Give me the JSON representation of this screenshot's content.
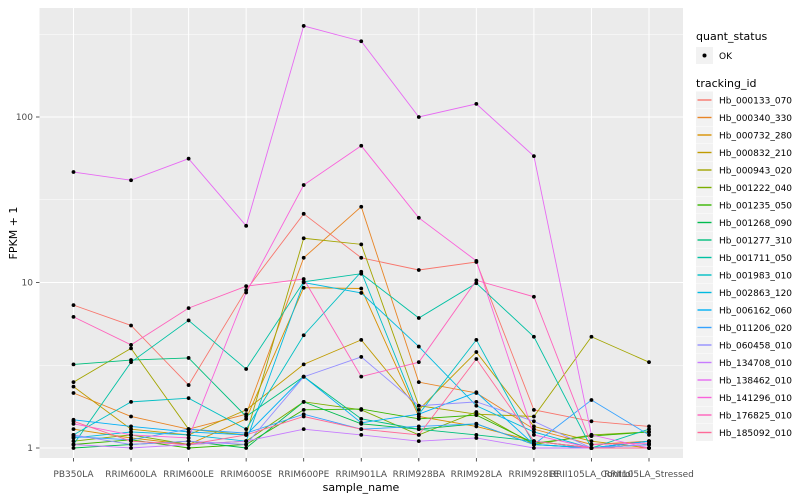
{
  "figure": {
    "kind": "ggplot-line-chart",
    "background": "#FFFFFF",
    "panel_background": "#EBEBEB",
    "grid_color": "#FFFFFF",
    "tick_color": "#333333",
    "tick_label_color": "#4D4D4D",
    "legend_key_fill": "#F2F2F2",
    "point_color": "#000000"
  },
  "legend": {
    "quant_status": {
      "title": "quant_status",
      "items": [
        {
          "label": "OK",
          "marker": "point"
        }
      ]
    },
    "tracking_id": {
      "title": "tracking_id"
    }
  },
  "chart_data": {
    "type": "line",
    "title": "",
    "xlabel": "sample_name",
    "ylabel": "FPKM + 1",
    "y_scale": "log10",
    "y_ticks": [
      1,
      10,
      100
    ],
    "y_minor_ticks": [
      3.1623,
      31.623,
      316.23
    ],
    "ylim_log": [
      0.87,
      456
    ],
    "grid": true,
    "legend_position": "right",
    "x_categories": [
      "PB350LA",
      "RRIM600LA",
      "RRIM600LE",
      "RRIM600SE",
      "RRIM600PE",
      "RRIM901LA",
      "RRIM928BA",
      "RRIM928LA",
      "RRIM928LE",
      "RRII105LA_Control",
      "RRII105LA_Stressed"
    ],
    "values_note": "FPKM+1, estimated from log axis",
    "series": [
      {
        "tracking_id": "Hb_000133_070",
        "color": "#F8766D",
        "quant_status": "OK",
        "values": [
          7.3,
          5.5,
          2.4,
          9.0,
          26.0,
          14.1,
          11.9,
          13.3,
          1.7,
          1.45,
          1.35
        ]
      },
      {
        "tracking_id": "Hb_000340_330",
        "color": "#E88526",
        "quant_status": "OK",
        "values": [
          2.15,
          1.55,
          1.3,
          1.6,
          14.1,
          28.7,
          2.5,
          2.15,
          1.3,
          1.05,
          1.1
        ]
      },
      {
        "tracking_id": "Hb_000732_280",
        "color": "#D89000",
        "quant_status": "OK",
        "values": [
          1.3,
          1.15,
          1.05,
          1.5,
          9.3,
          9.2,
          1.55,
          1.35,
          1.1,
          1.0,
          1.05
        ]
      },
      {
        "tracking_id": "Hb_000832_210",
        "color": "#C09B00",
        "quant_status": "OK",
        "values": [
          2.35,
          1.3,
          1.2,
          1.7,
          3.2,
          4.5,
          1.7,
          3.8,
          1.35,
          1.1,
          1.0
        ]
      },
      {
        "tracking_id": "Hb_000943_020",
        "color": "#A3A500",
        "quant_status": "OK",
        "values": [
          2.5,
          4.0,
          1.3,
          1.2,
          18.5,
          17.0,
          1.8,
          1.6,
          1.55,
          4.7,
          3.3
        ]
      },
      {
        "tracking_id": "Hb_001222_040",
        "color": "#7CAE00",
        "quant_status": "OK",
        "values": [
          1.1,
          1.2,
          1.05,
          1.1,
          1.9,
          1.7,
          1.2,
          1.65,
          1.05,
          1.2,
          1.25
        ]
      },
      {
        "tracking_id": "Hb_001235_050",
        "color": "#39B600",
        "quant_status": "OK",
        "values": [
          1.05,
          1.12,
          1.0,
          1.05,
          1.7,
          1.72,
          1.5,
          1.58,
          1.07,
          1.18,
          1.25
        ]
      },
      {
        "tracking_id": "Hb_001268_090",
        "color": "#00BB4E",
        "quant_status": "OK",
        "values": [
          1.0,
          1.05,
          1.1,
          1.0,
          1.9,
          1.4,
          1.3,
          1.4,
          1.05,
          1.0,
          1.1
        ]
      },
      {
        "tracking_id": "Hb_001277_310",
        "color": "#00BF7D",
        "quant_status": "OK",
        "values": [
          3.2,
          3.4,
          3.5,
          1.55,
          2.7,
          1.5,
          1.3,
          1.2,
          1.1,
          1.0,
          1.05
        ]
      },
      {
        "tracking_id": "Hb_001711_050",
        "color": "#00C1A3",
        "quant_status": "OK",
        "values": [
          1.05,
          3.3,
          5.9,
          3.0,
          10.1,
          11.3,
          6.1,
          9.9,
          4.7,
          1.0,
          1.3
        ]
      },
      {
        "tracking_id": "Hb_001983_010",
        "color": "#00BFC4",
        "quant_status": "OK",
        "values": [
          1.2,
          1.9,
          2.0,
          1.3,
          4.8,
          11.6,
          1.6,
          4.5,
          1.05,
          1.0,
          1.1
        ]
      },
      {
        "tracking_id": "Hb_002863_120",
        "color": "#00BAE0",
        "quant_status": "OK",
        "values": [
          1.15,
          1.25,
          1.2,
          1.1,
          10.0,
          8.65,
          4.1,
          1.8,
          1.25,
          1.0,
          1.05
        ]
      },
      {
        "tracking_id": "Hb_006162_060",
        "color": "#00B0F6",
        "quant_status": "OK",
        "values": [
          1.48,
          1.35,
          1.25,
          1.2,
          2.7,
          1.42,
          1.6,
          2.17,
          1.05,
          1.0,
          1.1
        ]
      },
      {
        "tracking_id": "Hb_011206_020",
        "color": "#35A2FF",
        "quant_status": "OK",
        "values": [
          1.17,
          1.12,
          1.3,
          1.23,
          1.6,
          1.3,
          1.35,
          1.4,
          1.05,
          1.95,
          1.2
        ]
      },
      {
        "tracking_id": "Hb_060458_010",
        "color": "#9590FF",
        "quant_status": "OK",
        "values": [
          1.2,
          1.05,
          1.1,
          1.05,
          2.69,
          3.55,
          1.8,
          1.9,
          1.45,
          1.0,
          1.05
        ]
      },
      {
        "tracking_id": "Hb_134708_010",
        "color": "#C77CFF",
        "quant_status": "OK",
        "values": [
          1.05,
          1.0,
          1.05,
          1.1,
          1.3,
          1.2,
          1.1,
          1.15,
          1.0,
          1.0,
          1.0
        ]
      },
      {
        "tracking_id": "Hb_138462_010",
        "color": "#E76BF3",
        "quant_status": "OK",
        "values": [
          46.5,
          41.5,
          56.0,
          22.0,
          355.0,
          287.0,
          100.0,
          120.0,
          58.0,
          1.2,
          1.0
        ]
      },
      {
        "tracking_id": "Hb_141296_010",
        "color": "#FA62DB",
        "quant_status": "OK",
        "values": [
          1.4,
          1.2,
          1.15,
          8.7,
          38.8,
          67.0,
          24.6,
          13.5,
          1.2,
          1.0,
          1.0
        ]
      },
      {
        "tracking_id": "Hb_176825_010",
        "color": "#FF62BC",
        "quant_status": "OK",
        "values": [
          6.2,
          4.2,
          7.0,
          9.5,
          10.5,
          2.7,
          3.3,
          10.3,
          8.2,
          1.05,
          1.07
        ]
      },
      {
        "tracking_id": "Hb_185092_010",
        "color": "#FF6A98",
        "quant_status": "OK",
        "values": [
          1.45,
          1.1,
          1.05,
          1.2,
          1.55,
          1.3,
          1.2,
          3.45,
          1.1,
          1.0,
          1.0
        ]
      }
    ]
  }
}
